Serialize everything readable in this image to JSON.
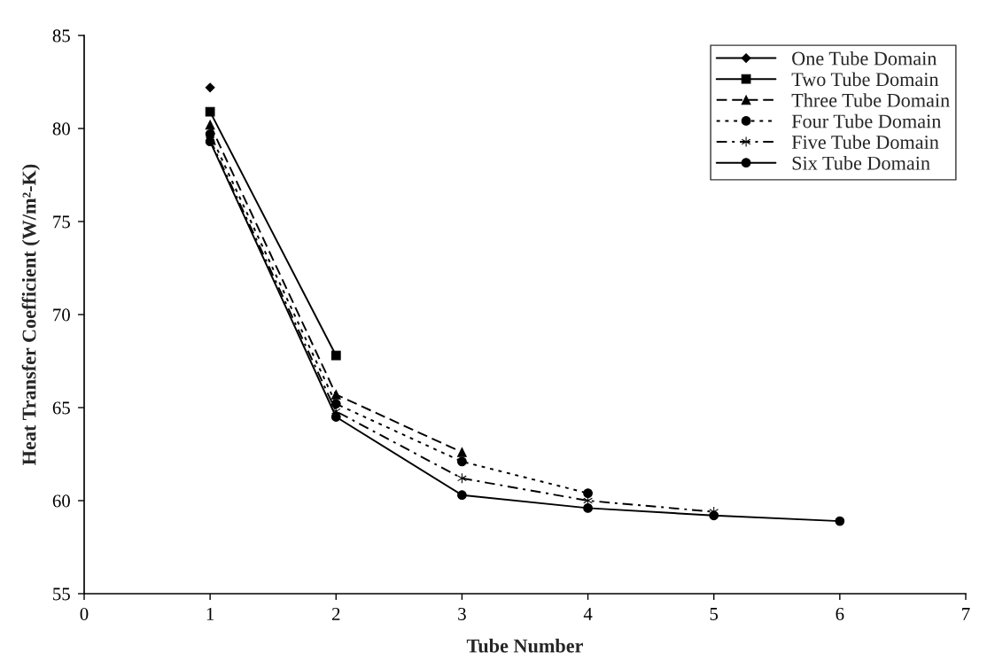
{
  "chart_data": {
    "type": "line",
    "xlabel": "Tube Number",
    "ylabel": "Heat Transfer Coefficient (W/m²-K)",
    "xlim": [
      0,
      7
    ],
    "xticks": [
      0,
      1,
      2,
      3,
      4,
      5,
      6,
      7
    ],
    "ylim": [
      55,
      85
    ],
    "yticks": [
      55,
      60,
      65,
      70,
      75,
      80,
      85
    ],
    "grid": false,
    "legend": "top right",
    "series": [
      {
        "name": "One Tube Domain",
        "color": "#000000",
        "marker": "diamond",
        "line_style": "solid",
        "x": [
          1
        ],
        "values": [
          82.2
        ]
      },
      {
        "name": "Two Tube Domain",
        "color": "#000000",
        "marker": "square",
        "line_style": "solid",
        "x": [
          1,
          2
        ],
        "values": [
          80.9,
          67.8
        ]
      },
      {
        "name": "Three Tube Domain",
        "color": "#000000",
        "marker": "triangle",
        "line_style": "dashed",
        "x": [
          1,
          2,
          3
        ],
        "values": [
          80.2,
          65.7,
          62.6
        ]
      },
      {
        "name": "Four Tube Domain",
        "color": "#000000",
        "marker": "circle",
        "line_style": "dotted",
        "x": [
          1,
          2,
          3,
          4
        ],
        "values": [
          79.7,
          65.2,
          62.1,
          60.4
        ]
      },
      {
        "name": "Five Tube Domain",
        "color": "#000000",
        "marker": "cross",
        "line_style": "dashdot",
        "x": [
          1,
          2,
          3,
          4,
          5
        ],
        "values": [
          79.4,
          64.8,
          61.2,
          60.0,
          59.4
        ]
      },
      {
        "name": "Six Tube Domain",
        "color": "#000000",
        "marker": "circle",
        "line_style": "solid",
        "x": [
          1,
          2,
          3,
          4,
          5,
          6
        ],
        "values": [
          79.3,
          64.5,
          60.3,
          59.6,
          59.2,
          58.9
        ]
      }
    ]
  }
}
